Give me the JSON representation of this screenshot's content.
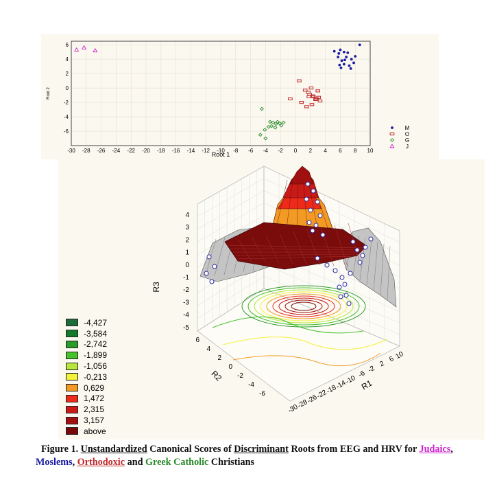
{
  "chart_data": [
    {
      "type": "scatter",
      "xlabel": "Root 1",
      "ylabel": "Root 2",
      "xlim": [
        -30,
        10
      ],
      "ylim": [
        -8,
        6.5
      ],
      "xticks": [
        -30,
        -28,
        -26,
        -24,
        -22,
        -20,
        -18,
        -16,
        -14,
        -12,
        -10,
        -8,
        -6,
        -4,
        -2,
        0,
        2,
        4,
        6,
        8,
        10
      ],
      "yticks": [
        6,
        4,
        2,
        0,
        -2,
        -4,
        -6
      ],
      "legend": {
        "position": "right",
        "entries": [
          "M",
          "O",
          "G",
          "J"
        ]
      },
      "series": [
        {
          "name": "M",
          "marker": "dot",
          "color": "#1a1aa0",
          "points": [
            [
              5.2,
              5.1
            ],
            [
              5.8,
              4.8
            ],
            [
              6.0,
              5.3
            ],
            [
              6.5,
              5.0
            ],
            [
              7.0,
              4.9
            ],
            [
              8.0,
              4.4
            ],
            [
              6.8,
              4.3
            ],
            [
              7.5,
              4.0
            ],
            [
              6.2,
              3.8
            ],
            [
              5.9,
              3.2
            ],
            [
              7.8,
              3.5
            ],
            [
              6.5,
              3.3
            ],
            [
              6.1,
              2.8
            ],
            [
              7.4,
              2.7
            ],
            [
              8.6,
              6.0
            ],
            [
              5.7,
              4.3
            ],
            [
              6.6,
              3.9
            ],
            [
              7.2,
              3.1
            ]
          ]
        },
        {
          "name": "O",
          "marker": "square",
          "color": "#c0282a",
          "points": [
            [
              0.5,
              1.0
            ],
            [
              1.7,
              -0.6
            ],
            [
              2.3,
              -1.1
            ],
            [
              2.7,
              -1.6
            ],
            [
              3.1,
              -1.3
            ],
            [
              1.5,
              -2.6
            ],
            [
              2.2,
              -2.3
            ],
            [
              0.8,
              -2.0
            ],
            [
              3.0,
              -0.4
            ],
            [
              2.4,
              -1.2
            ],
            [
              -0.7,
              -1.5
            ],
            [
              1.3,
              -0.3
            ],
            [
              1.8,
              -1.2
            ],
            [
              3.3,
              -1.8
            ],
            [
              2.1,
              0.0
            ],
            [
              2.8,
              -1.5
            ],
            [
              1.9,
              -0.9
            ]
          ]
        },
        {
          "name": "G",
          "marker": "diamond",
          "color": "#2a8a2a",
          "points": [
            [
              -4.5,
              -2.9
            ],
            [
              -3.4,
              -4.7
            ],
            [
              -3.0,
              -4.8
            ],
            [
              -2.6,
              -5.0
            ],
            [
              -2.1,
              -4.9
            ],
            [
              -1.6,
              -4.8
            ],
            [
              -2.7,
              -5.5
            ],
            [
              -3.6,
              -5.4
            ],
            [
              -4.1,
              -5.8
            ],
            [
              -4.7,
              -6.5
            ],
            [
              -3.2,
              -5.3
            ],
            [
              -2.4,
              -4.7
            ],
            [
              -4.0,
              -7.0
            ],
            [
              -1.9,
              -5.2
            ]
          ]
        },
        {
          "name": "J",
          "marker": "triangle",
          "color": "#cc22cc",
          "points": [
            [
              -29.3,
              5.3
            ],
            [
              -28.3,
              5.6
            ],
            [
              -26.8,
              5.2
            ]
          ]
        }
      ]
    },
    {
      "type": "surface3d",
      "xlabel": "R1",
      "ylabel": "R2",
      "zlabel": "R3",
      "r1_ticks": [
        "-30",
        "-28",
        "-26",
        "-22",
        "-18",
        "-14",
        "-10",
        "-6",
        "-2",
        "2",
        "6",
        "10"
      ],
      "r2_ticks": [
        "6",
        "4",
        "2",
        "0",
        "-2",
        "-4",
        "-6"
      ],
      "z_ticks": [
        "4",
        "3",
        "2",
        "1",
        "0",
        "-1",
        "-2",
        "-3",
        "-4",
        "-5"
      ],
      "legend": {
        "position": "left",
        "levels": [
          {
            "label": "-4,427",
            "color": "#1e6b3a"
          },
          {
            "label": "-3,584",
            "color": "#147a2a"
          },
          {
            "label": "-2,742",
            "color": "#2a9a2a"
          },
          {
            "label": "-1,899",
            "color": "#46c02c"
          },
          {
            "label": "-1,056",
            "color": "#b8e63a"
          },
          {
            "label": "-0,213",
            "color": "#f4f23a"
          },
          {
            "label": "0,629",
            "color": "#f39a24"
          },
          {
            "label": "1,472",
            "color": "#ee2a1a"
          },
          {
            "label": "2,315",
            "color": "#c81a16"
          },
          {
            "label": "3,157",
            "color": "#a0100e"
          },
          {
            "label": "above",
            "color": "#780808"
          }
        ]
      }
    }
  ],
  "caption": {
    "prefix": "Figure 1.",
    "w_unstandardized": "Unstandardized",
    "t_canonical": " Canonical Scores of ",
    "w_discriminant": "Discriminant",
    "t_rest": " Roots from EEG and HRV for ",
    "w_judaics": "Judaics",
    "t_comma": ",",
    "w_moslems": "Moslems",
    "t_comma2": ", ",
    "w_orthodoxic": "Orthodoxic",
    "t_and": " and ",
    "w_greek": "Greek Catholic",
    "t_end": " Christians",
    "colors": {
      "judaics": "#cc22cc",
      "moslems": "#1a1aa0",
      "orthodoxic": "#c0282a",
      "greek": "#2a8a2a"
    }
  }
}
